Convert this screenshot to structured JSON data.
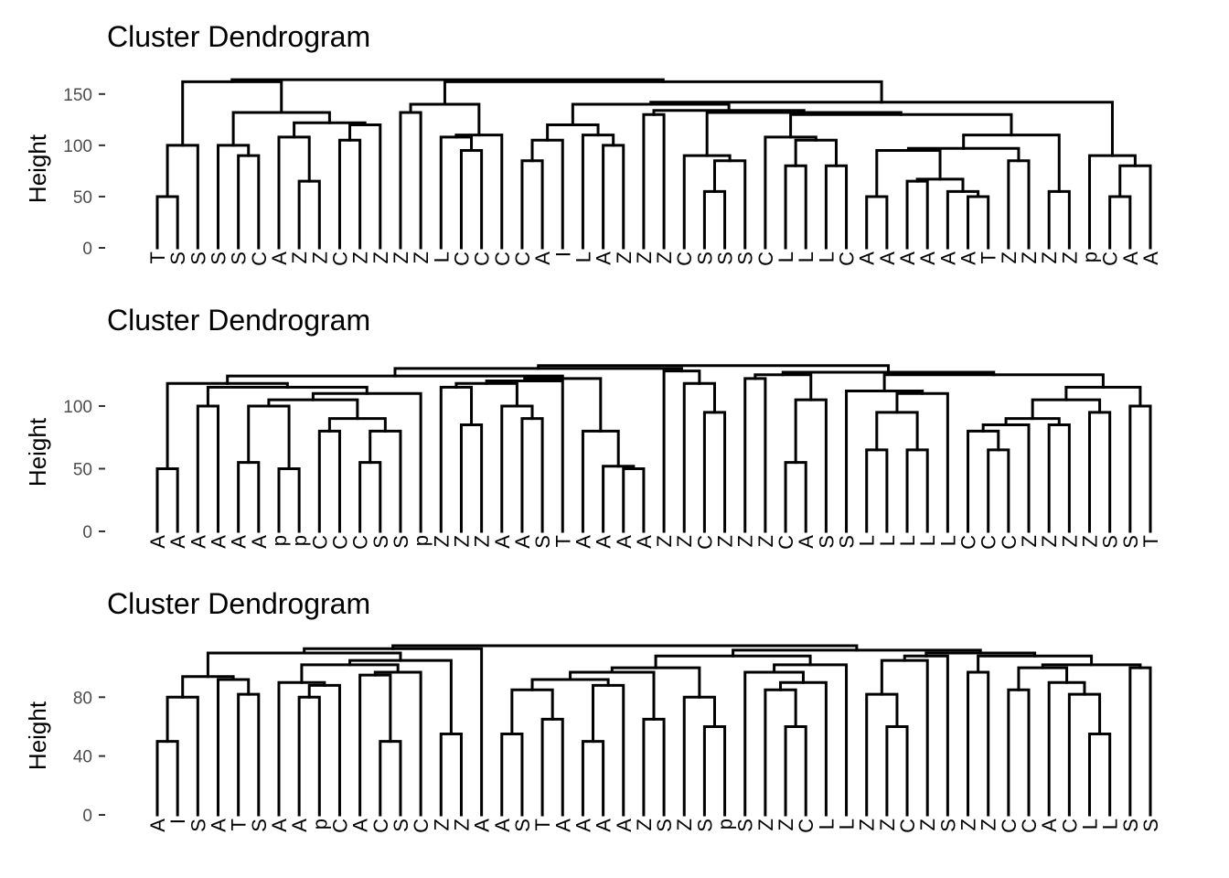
{
  "chart_data": [
    {
      "type": "dendrogram",
      "title": "Cluster Dendrogram",
      "ylabel": "Height",
      "yticks": [
        0,
        50,
        100,
        150
      ],
      "ylim": [
        0,
        165
      ],
      "leaf_count": 50,
      "merge_heights_example": [
        162,
        140,
        132,
        130,
        120,
        110,
        108,
        105,
        100,
        95,
        90,
        85,
        80,
        65,
        55,
        50
      ],
      "leaf_labels_visible": [
        "T",
        "S",
        "S",
        "S",
        "S",
        "C",
        "A",
        "Z",
        "Z",
        "C",
        "Z",
        "Z",
        "Z",
        "Z",
        "L",
        "C",
        "C",
        "C",
        "C",
        "A",
        "I",
        "L",
        "A",
        "Z",
        "Z",
        "Z",
        "C",
        "S",
        "S",
        "S",
        "C",
        "L",
        "L",
        "L",
        "C",
        "A",
        "A",
        "A",
        "A",
        "A",
        "A",
        "T",
        "Z",
        "Z",
        "Z",
        "Z",
        "p",
        "C",
        "A",
        "A"
      ]
    },
    {
      "type": "dendrogram",
      "title": "Cluster Dendrogram",
      "ylabel": "Height",
      "yticks": [
        0,
        50,
        100
      ],
      "ylim": [
        0,
        135
      ],
      "leaf_count": 50,
      "merge_heights_example": [
        128,
        125,
        122,
        118,
        115,
        110,
        105,
        100,
        95,
        90,
        85,
        80,
        65,
        55,
        50
      ],
      "leaf_labels_visible": [
        "A",
        "A",
        "A",
        "A",
        "A",
        "A",
        "p",
        "p",
        "C",
        "C",
        "C",
        "S",
        "S",
        "p",
        "Z",
        "Z",
        "Z",
        "A",
        "A",
        "S",
        "T",
        "A",
        "A",
        "A",
        "A",
        "Z",
        "Z",
        "C",
        "Z",
        "Z",
        "Z",
        "C",
        "A",
        "S",
        "S",
        "L",
        "L",
        "L",
        "L",
        "L",
        "C",
        "C",
        "C",
        "Z",
        "Z",
        "Z",
        "Z",
        "S",
        "S",
        "T"
      ]
    },
    {
      "type": "dendrogram",
      "title": "Cluster Dendrogram",
      "ylabel": "Height",
      "yticks": [
        0,
        40,
        80
      ],
      "ylim": [
        0,
        115
      ],
      "leaf_count": 50,
      "merge_heights_example": [
        113,
        110,
        108,
        105,
        102,
        100,
        97,
        95,
        92,
        90,
        88,
        85,
        82,
        80,
        65,
        60,
        55,
        50
      ],
      "leaf_labels_visible": [
        "A",
        "I",
        "S",
        "A",
        "T",
        "S",
        "A",
        "A",
        "p",
        "C",
        "A",
        "C",
        "S",
        "C",
        "Z",
        "Z",
        "A",
        "A",
        "S",
        "T",
        "A",
        "A",
        "A",
        "A",
        "Z",
        "S",
        "Z",
        "S",
        "p",
        "S",
        "Z",
        "Z",
        "C",
        "L",
        "L",
        "Z",
        "Z",
        "C",
        "Z",
        "S",
        "Z",
        "Z",
        "C",
        "C",
        "A",
        "C",
        "L",
        "L",
        "S",
        "S"
      ]
    }
  ]
}
